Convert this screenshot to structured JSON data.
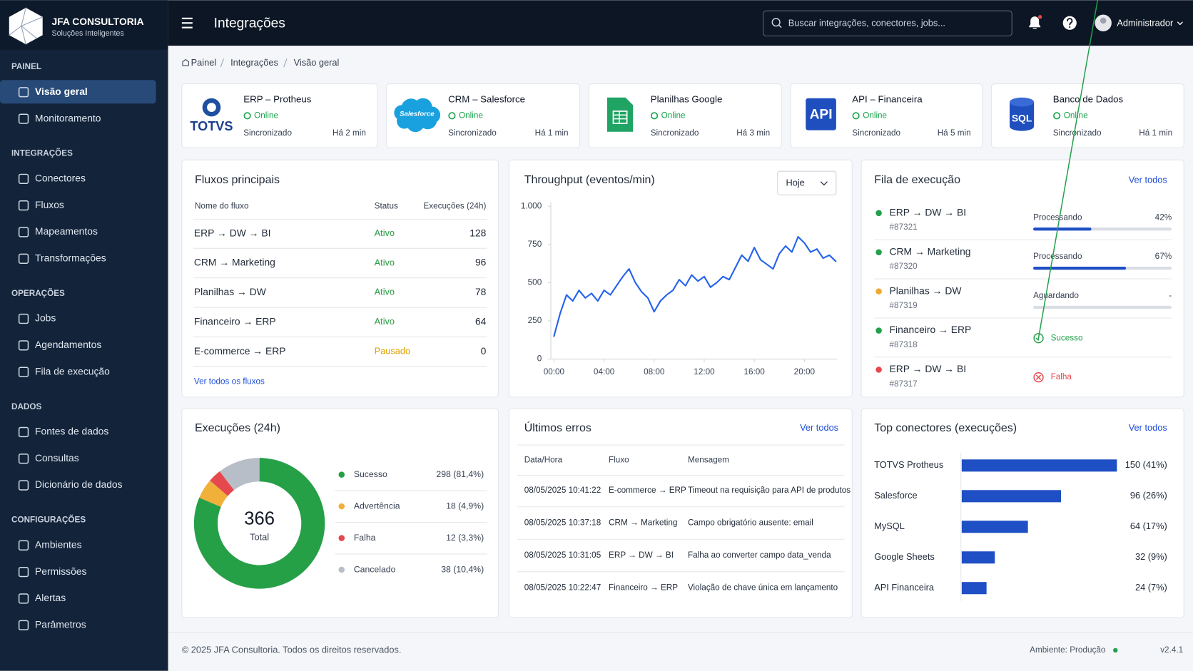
{
  "brand": {
    "name": "JFA CONSULTORIA",
    "tagline": "Soluções Inteligentes"
  },
  "sidebar": [
    {
      "title": "PAINEL",
      "items": [
        "Visão geral",
        "Monitoramento"
      ]
    },
    {
      "title": "INTEGRAÇÕES",
      "items": [
        "Conectores",
        "Fluxos",
        "Mapeamentos",
        "Transformações"
      ]
    },
    {
      "title": "OPERAÇÕES",
      "items": [
        "Jobs",
        "Agendamentos",
        "Fila de execução"
      ]
    },
    {
      "title": "DADOS",
      "items": [
        "Fontes de dados",
        "Consultas",
        "Dicionário de dados"
      ]
    },
    {
      "title": "CONFIGURAÇÕES",
      "items": [
        "Ambientes",
        "Permissões",
        "Alertas",
        "Parâmetros"
      ]
    }
  ],
  "topbar": {
    "title": "Integrações",
    "search_placeholder": "Buscar integrações, conectores, jobs...",
    "user": "Administrador"
  },
  "breadcrumb": [
    "Painel",
    "Integrações",
    "Visão geral"
  ],
  "connectors": [
    {
      "logo": "TOTVS",
      "name": "ERP – Protheus",
      "status": "Online",
      "sync": "Sincronizado",
      "time": "Há 2 min"
    },
    {
      "logo": "Salesforce",
      "name": "CRM – Salesforce",
      "status": "Online",
      "sync": "Sincronizado",
      "time": "Há 1 min"
    },
    {
      "name": "Planilhas Google",
      "status": "Online",
      "sync": "Sincronizado",
      "time": "Há 3 min"
    },
    {
      "logo": "API",
      "name": "API – Financeira",
      "status": "Online",
      "sync": "Sincronizado",
      "time": "Há 5 min"
    },
    {
      "logo": "SQL",
      "name": "Banco de Dados",
      "status": "Online",
      "sync": "Sincronizado",
      "time": "Há 1 min"
    }
  ],
  "flows": {
    "title": "Fluxos principais",
    "columns": [
      "Nome do fluxo",
      "Status",
      "Execuções (24h)"
    ],
    "rows": [
      {
        "name": "ERP → DW → BI",
        "status": "Ativo",
        "status_color": "#2a9d44",
        "executions": 128
      },
      {
        "name": "CRM → Marketing",
        "status": "Ativo",
        "status_color": "#2a9d44",
        "executions": 96
      },
      {
        "name": "Planilhas → DW",
        "status": "Ativo",
        "status_color": "#2a9d44",
        "executions": 78
      },
      {
        "name": "Financeiro → ERP",
        "status": "Ativo",
        "status_color": "#2a9d44",
        "executions": 64
      },
      {
        "name": "E-commerce → ERP",
        "status": "Pausado",
        "status_color": "#e0a000",
        "executions": 0
      }
    ],
    "link": "Ver todos os fluxos"
  },
  "throughput": {
    "type": "line",
    "title": "Throughput (eventos/min)",
    "period": "Hoje",
    "color": "#2563eb",
    "x": [
      0,
      0.5,
      1,
      1.5,
      2,
      2.5,
      3,
      3.5,
      4,
      4.5,
      5,
      5.5,
      6,
      6.5,
      7,
      7.5,
      8,
      8.5,
      9,
      9.5,
      10,
      10.5,
      11,
      11.5,
      12,
      12.5,
      13,
      13.5,
      14,
      14.5,
      15,
      15.5,
      16,
      16.5,
      17,
      17.5,
      18,
      18.5,
      19,
      19.5,
      20,
      20.5,
      21,
      21.5,
      22,
      22.5
    ],
    "values": [
      150,
      300,
      420,
      380,
      450,
      400,
      430,
      380,
      450,
      420,
      480,
      540,
      590,
      500,
      440,
      400,
      310,
      380,
      420,
      450,
      520,
      480,
      550,
      510,
      540,
      470,
      500,
      540,
      520,
      600,
      680,
      640,
      730,
      650,
      620,
      590,
      690,
      740,
      700,
      800,
      760,
      700,
      720,
      660,
      680,
      640
    ],
    "xlim": [
      -0.25,
      22.6
    ],
    "xticks": [
      {
        "value": 0,
        "label": "00:00"
      },
      {
        "value": 4,
        "label": "04:00"
      },
      {
        "value": 8,
        "label": "08:00"
      },
      {
        "value": 12,
        "label": "12:00"
      },
      {
        "value": 16,
        "label": "16:00"
      },
      {
        "value": 20,
        "label": "20:00"
      }
    ],
    "ylim": [
      0,
      1000
    ],
    "yticks": [
      0,
      250,
      500,
      750,
      {
        "value": 1000,
        "label": "1.000"
      }
    ],
    "grid": false
  },
  "queue": {
    "title": "Fila de execução",
    "link": "Ver todos",
    "items": [
      {
        "name": "ERP → DW → BI",
        "id": "#87321",
        "dot_color": "#22a04b",
        "status": "Processando",
        "status_color": "#374151",
        "progress": 42,
        "progress_label": "42%"
      },
      {
        "name": "CRM → Marketing",
        "id": "#87320",
        "dot_color": "#22a04b",
        "status": "Processando",
        "status_color": "#374151",
        "progress": 67,
        "progress_label": "67%"
      },
      {
        "name": "Planilhas → DW",
        "id": "#87319",
        "dot_color": "#f0a830",
        "status": "Aguardando",
        "status_color": "#374151",
        "progress_label": "-"
      },
      {
        "name": "Financeiro → ERP",
        "id": "#87318",
        "dot_color": "#22a04b",
        "status": "Sucesso",
        "status_color": "#22a04b",
        "icon": "check"
      },
      {
        "name": "ERP → DW → BI",
        "id": "#87317",
        "dot_color": "#e5484d",
        "status": "Falha",
        "status_color": "#e5484d",
        "icon": "x"
      }
    ]
  },
  "executions": {
    "type": "donut",
    "title": "Execuções (24h)",
    "total": 366,
    "total_label": "Total",
    "categories": [
      "Sucesso",
      "Advertência",
      "Falha",
      "Cancelado"
    ],
    "values": [
      298,
      18,
      12,
      38
    ],
    "value_labels": [
      "298 (81,4%)",
      "18 (4,9%)",
      "12 (3,3%)",
      "38 (10,4%)"
    ],
    "colors": [
      "#25a047",
      "#f0b03a",
      "#e5484d",
      "#b8bec7"
    ]
  },
  "errors": {
    "title": "Últimos erros",
    "link": "Ver todos",
    "columns": [
      "Data/Hora",
      "Fluxo",
      "Mensagem"
    ],
    "rows": [
      [
        "08/05/2025 10:41:22",
        "E-commerce → ERP",
        "Timeout na requisição para API de produtos"
      ],
      [
        "08/05/2025 10:37:18",
        "CRM → Marketing",
        "Campo obrigatório ausente: email"
      ],
      [
        "08/05/2025 10:31:05",
        "ERP → DW → BI",
        "Falha ao converter campo data_venda"
      ],
      [
        "08/05/2025 10:22:47",
        "Financeiro → ERP",
        "Violação de chave única em lançamento"
      ]
    ]
  },
  "top_connectors": {
    "type": "bar",
    "title": "Top conectores (execuções)",
    "link": "Ver todos",
    "color": "#1f4fc4",
    "categories": [
      "TOTVS Protheus",
      "Salesforce",
      "MySQL",
      "Google Sheets",
      "API Financeira"
    ],
    "values": [
      150,
      96,
      64,
      32,
      24
    ],
    "value_labels": [
      "150 (41%)",
      "96 (26%)",
      "64 (17%)",
      "32 (9%)",
      "24 (7%)"
    ]
  },
  "footer": {
    "copyright": "© 2025 JFA Consultoria. Todos os direitos reservados.",
    "environment": "Ambiente: Produção",
    "version": "v2.4.1"
  }
}
